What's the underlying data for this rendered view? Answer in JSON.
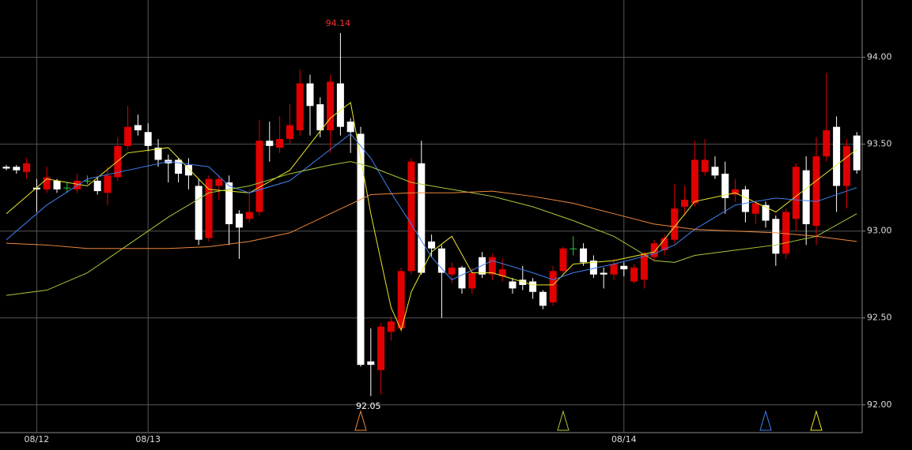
{
  "chart_data": {
    "type": "candlestick",
    "categories": [
      null,
      null,
      null,
      "08/12",
      null,
      null,
      null,
      null,
      null,
      null,
      null,
      null,
      null,
      null,
      "08/13",
      null,
      null,
      null,
      null,
      null,
      null,
      null,
      null,
      null,
      null,
      null,
      null,
      null,
      null,
      null,
      null,
      null,
      null,
      null,
      null,
      null,
      null,
      null,
      null,
      null,
      null,
      null,
      null,
      null,
      null,
      null,
      null,
      null,
      null,
      null,
      null,
      null,
      null,
      null,
      null,
      null,
      null,
      null,
      null,
      null,
      null,
      "08/14",
      null,
      null,
      null,
      null,
      null,
      null,
      null,
      null,
      null,
      null,
      null,
      null,
      null,
      null,
      null,
      null,
      null,
      null,
      null,
      null,
      null,
      null,
      null
    ],
    "open": [
      93.37,
      93.37,
      93.34,
      93.25,
      93.24,
      93.29,
      93.25,
      93.24,
      93.29,
      93.29,
      93.22,
      93.31,
      93.49,
      93.61,
      93.57,
      93.48,
      93.41,
      93.41,
      93.38,
      93.26,
      92.96,
      93.26,
      93.28,
      93.1,
      93.07,
      93.11,
      93.52,
      93.48,
      93.53,
      93.58,
      93.85,
      93.73,
      93.58,
      93.85,
      93.63,
      93.56,
      92.25,
      92.2,
      92.42,
      92.44,
      92.77,
      93.39,
      92.94,
      92.9,
      92.75,
      92.79,
      92.67,
      92.85,
      92.75,
      92.74,
      92.71,
      92.72,
      92.71,
      92.65,
      92.59,
      92.77,
      92.9,
      92.9,
      92.83,
      92.76,
      92.75,
      92.8,
      92.71,
      92.72,
      92.85,
      92.89,
      92.95,
      93.14,
      93.16,
      93.34,
      93.37,
      93.33,
      93.21,
      93.24,
      93.1,
      93.15,
      93.07,
      92.87,
      93.07,
      93.35,
      93.03,
      93.43,
      93.6,
      93.26,
      93.55
    ],
    "high": [
      93.38,
      93.38,
      93.42,
      93.3,
      93.37,
      93.3,
      93.28,
      93.33,
      93.32,
      93.31,
      93.37,
      93.54,
      93.72,
      93.67,
      93.62,
      93.53,
      93.44,
      93.42,
      93.42,
      93.3,
      93.32,
      93.32,
      93.32,
      93.12,
      93.24,
      93.64,
      93.63,
      93.66,
      93.73,
      93.93,
      93.9,
      93.77,
      93.9,
      94.14,
      93.65,
      93.6,
      92.44,
      92.47,
      92.51,
      92.79,
      93.42,
      93.52,
      92.98,
      92.92,
      92.82,
      92.8,
      92.79,
      92.88,
      92.87,
      92.84,
      92.73,
      92.8,
      92.73,
      92.66,
      92.8,
      92.91,
      92.97,
      92.93,
      92.86,
      92.79,
      92.84,
      92.82,
      92.81,
      92.88,
      92.95,
      92.98,
      93.27,
      93.26,
      93.52,
      93.53,
      93.43,
      93.4,
      93.3,
      93.26,
      93.18,
      93.17,
      93.09,
      93.13,
      93.39,
      93.43,
      93.54,
      93.91,
      93.66,
      93.53,
      93.57
    ],
    "low": [
      93.35,
      93.33,
      93.3,
      93.11,
      93.22,
      93.22,
      93.22,
      93.22,
      93.27,
      93.21,
      93.15,
      93.29,
      93.47,
      93.55,
      93.46,
      93.37,
      93.28,
      93.28,
      93.24,
      92.92,
      92.94,
      93.18,
      92.92,
      92.84,
      93.05,
      93.09,
      93.4,
      93.45,
      93.5,
      93.55,
      93.55,
      93.54,
      93.45,
      93.55,
      93.45,
      92.22,
      92.05,
      92.06,
      92.37,
      92.42,
      92.75,
      92.75,
      92.85,
      92.5,
      92.7,
      92.64,
      92.64,
      92.73,
      92.72,
      92.71,
      92.64,
      92.66,
      92.61,
      92.55,
      92.57,
      92.75,
      92.86,
      92.8,
      92.73,
      92.67,
      92.72,
      92.74,
      92.7,
      92.67,
      92.83,
      92.86,
      92.93,
      93.09,
      93.14,
      93.32,
      93.3,
      93.1,
      93.17,
      93.05,
      93.04,
      93.02,
      92.8,
      92.84,
      93.0,
      92.92,
      92.92,
      93.4,
      93.11,
      93.13,
      93.33
    ],
    "close": [
      93.36,
      93.35,
      93.39,
      93.24,
      93.31,
      93.24,
      93.25,
      93.29,
      93.29,
      93.23,
      93.32,
      93.49,
      93.6,
      93.58,
      93.49,
      93.41,
      93.39,
      93.33,
      93.32,
      92.95,
      93.3,
      93.3,
      93.04,
      93.02,
      93.11,
      93.52,
      93.49,
      93.53,
      93.61,
      93.85,
      93.72,
      93.58,
      93.86,
      93.6,
      93.57,
      92.23,
      92.23,
      92.45,
      92.48,
      92.77,
      93.4,
      92.76,
      92.9,
      92.76,
      92.79,
      92.67,
      92.76,
      92.75,
      92.85,
      92.78,
      92.67,
      92.69,
      92.65,
      92.57,
      92.77,
      92.9,
      92.9,
      92.82,
      92.75,
      92.75,
      92.81,
      92.78,
      92.79,
      92.87,
      92.93,
      92.96,
      93.13,
      93.18,
      93.41,
      93.41,
      93.32,
      93.19,
      93.24,
      93.11,
      93.16,
      93.06,
      92.87,
      93.11,
      93.37,
      93.04,
      93.43,
      93.58,
      93.26,
      93.49,
      93.35
    ],
    "up_color": "#e00000",
    "down_color": "#ffffff",
    "doji_color": "#33cc33",
    "series": [
      {
        "color": "#e8e830",
        "x": [
          0,
          4,
          8,
          12,
          16,
          20,
          24,
          28,
          32,
          34,
          36,
          38,
          39,
          40,
          42,
          44,
          46,
          48,
          52,
          54,
          56,
          60,
          64,
          68,
          72,
          76,
          80,
          84
        ],
        "values": [
          93.1,
          93.3,
          93.26,
          93.45,
          93.48,
          93.24,
          93.22,
          93.35,
          93.65,
          93.74,
          93.1,
          92.56,
          92.43,
          92.65,
          92.88,
          92.97,
          92.76,
          92.76,
          92.69,
          92.69,
          92.81,
          92.83,
          92.88,
          93.17,
          93.22,
          93.11,
          93.29,
          93.47
        ]
      },
      {
        "color": "#4080f0",
        "x": [
          0,
          4,
          8,
          12,
          16,
          20,
          22,
          24,
          28,
          32,
          34,
          36,
          38,
          40,
          42,
          44,
          48,
          52,
          54,
          56,
          60,
          64,
          66,
          68,
          72,
          76,
          80,
          84
        ],
        "values": [
          92.95,
          93.15,
          93.3,
          93.35,
          93.4,
          93.37,
          93.26,
          93.22,
          93.29,
          93.47,
          93.56,
          93.42,
          93.22,
          93.04,
          92.85,
          92.72,
          92.83,
          92.76,
          92.72,
          92.76,
          92.81,
          92.87,
          92.92,
          93.01,
          93.15,
          93.19,
          93.17,
          93.25
        ]
      },
      {
        "color": "#a8c838",
        "x": [
          0,
          4,
          8,
          12,
          16,
          20,
          24,
          28,
          32,
          34,
          36,
          40,
          44,
          48,
          52,
          56,
          60,
          64,
          66,
          68,
          72,
          76,
          80,
          84
        ],
        "values": [
          92.63,
          92.66,
          92.76,
          92.92,
          93.08,
          93.22,
          93.26,
          93.33,
          93.38,
          93.4,
          93.37,
          93.28,
          93.24,
          93.2,
          93.14,
          93.06,
          92.97,
          92.83,
          92.82,
          92.86,
          92.89,
          92.92,
          92.97,
          93.1
        ]
      },
      {
        "color": "#f08838",
        "x": [
          0,
          4,
          8,
          12,
          16,
          20,
          24,
          28,
          32,
          36,
          40,
          44,
          48,
          52,
          56,
          60,
          64,
          68,
          72,
          76,
          80,
          84
        ],
        "values": [
          92.93,
          92.92,
          92.9,
          92.9,
          92.9,
          92.91,
          92.94,
          92.99,
          93.1,
          93.21,
          93.22,
          93.22,
          93.23,
          93.2,
          93.16,
          93.1,
          93.04,
          93.01,
          93.0,
          92.99,
          92.97,
          92.94
        ]
      }
    ],
    "markers": [
      {
        "x": 35,
        "color": "#f08838"
      },
      {
        "x": 55,
        "color": "#a8c838"
      },
      {
        "x": 75,
        "color": "#4080f0"
      },
      {
        "x": 80,
        "color": "#e8e830"
      }
    ],
    "annotations": [
      {
        "x": 33,
        "value": 94.14,
        "label": "94.14",
        "color": "#ff3030"
      },
      {
        "x": 36,
        "value": 92.05,
        "label": "92.05",
        "color": "#ffffff"
      }
    ],
    "ylim": [
      91.84,
      94.33
    ],
    "yticks": [
      {
        "value": 92,
        "label": "92.00"
      },
      {
        "value": 92.5,
        "label": "92.50"
      },
      {
        "value": 93,
        "label": "93.00"
      },
      {
        "value": 93.5,
        "label": "93.50"
      },
      {
        "value": 94,
        "label": "94.00"
      }
    ],
    "grid": true
  }
}
